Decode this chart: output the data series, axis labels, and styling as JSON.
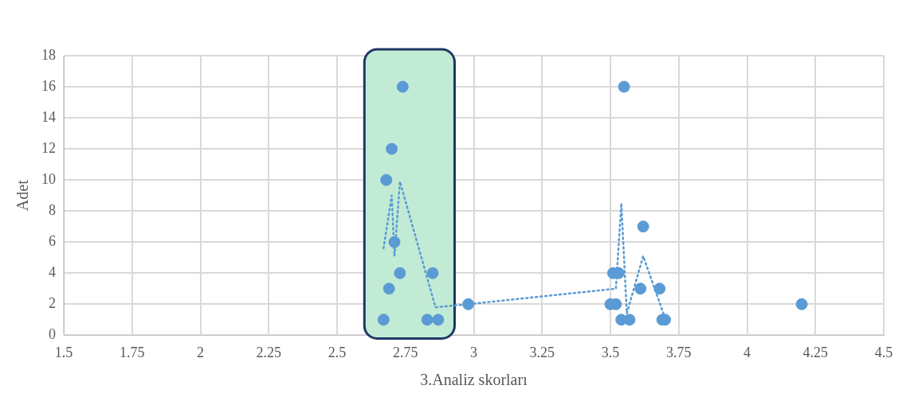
{
  "chart_data": {
    "type": "scatter",
    "xlabel": "3.Analiz skorları",
    "ylabel": "Adet",
    "xlim": [
      1.5,
      4.5
    ],
    "xticks": [
      1.5,
      1.75,
      2,
      2.25,
      2.5,
      2.75,
      3,
      3.25,
      3.5,
      3.75,
      4,
      4.25,
      4.5
    ],
    "ylim": [
      0,
      18
    ],
    "yticks": [
      0,
      2,
      4,
      6,
      8,
      10,
      12,
      14,
      16,
      18
    ],
    "grid": true,
    "marker": "circle",
    "bands": [
      {
        "axis": "x",
        "from": 2.6,
        "to": 2.93,
        "color": "#c2ebd5"
      }
    ],
    "series": [
      {
        "color": "#5b9bd5",
        "x": [
          2.74,
          2.7,
          2.68,
          2.71,
          2.73,
          2.69,
          2.67,
          2.85,
          2.83,
          2.87,
          2.98,
          3.55,
          3.62,
          3.51,
          3.53,
          3.5,
          3.52,
          3.54,
          3.57,
          3.61,
          3.68,
          3.69,
          3.7,
          4.2
        ],
        "values": [
          16,
          12,
          10,
          6,
          4,
          3,
          1,
          4,
          1,
          1,
          2,
          16,
          7,
          4,
          4,
          2,
          2,
          1,
          1,
          3,
          3,
          1,
          1,
          2
        ]
      },
      {
        "type": "line",
        "color": "#5b9bd5",
        "line_style": "dotted",
        "marker": "none",
        "x": [
          2.67,
          2.7,
          2.71,
          2.73,
          2.86,
          2.98,
          3.52,
          3.54,
          3.56,
          3.62,
          3.7
        ],
        "values": [
          5.6,
          9,
          5.1,
          9.9,
          1.8,
          2,
          3,
          8.5,
          1.4,
          5.1,
          1.1
        ]
      }
    ]
  }
}
